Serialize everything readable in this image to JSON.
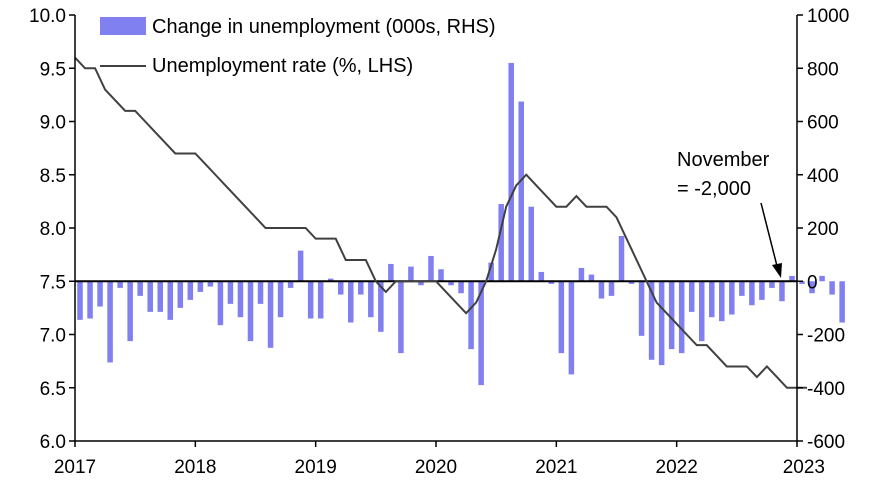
{
  "chart_data": {
    "type": "bar+line",
    "title": "",
    "x_ticks": [
      "2017",
      "2018",
      "2019",
      "2020",
      "2021",
      "2022",
      "2023"
    ],
    "x_range": [
      2017,
      2023
    ],
    "y_left": {
      "label": "",
      "ticks": [
        "6.0",
        "6.5",
        "7.0",
        "7.5",
        "8.0",
        "8.5",
        "9.0",
        "9.5",
        "10.0"
      ],
      "range": [
        6.0,
        10.0
      ]
    },
    "y_right": {
      "label": "",
      "ticks": [
        "-600",
        "-400",
        "-200",
        "0",
        "200",
        "400",
        "600",
        "800",
        "1000"
      ],
      "range": [
        -600,
        1000
      ]
    },
    "legend": {
      "placement": "top-left",
      "entries": [
        {
          "name": "Change in unemployment (000s, RHS)",
          "kind": "bar"
        },
        {
          "name": "Unemployment rate (%, LHS)",
          "kind": "line"
        }
      ]
    },
    "annotation": {
      "lines": [
        "November",
        "= -2,000"
      ]
    },
    "bar_series": {
      "name": "Change in unemployment (000s, RHS)",
      "color": "#8080F0",
      "start_year": 2017,
      "values": [
        -145,
        -140,
        -95,
        -305,
        -25,
        -225,
        -55,
        -115,
        -115,
        -145,
        -100,
        -70,
        -40,
        -20,
        -165,
        -85,
        -135,
        -225,
        -85,
        -250,
        -135,
        -25,
        115,
        -140,
        -140,
        10,
        -50,
        -155,
        -50,
        -135,
        -190,
        65,
        -270,
        55,
        -15,
        95,
        45,
        -15,
        -45,
        -255,
        -390,
        70,
        290,
        820,
        675,
        280,
        35,
        -10,
        -270,
        -350,
        50,
        25,
        -65,
        -55,
        170,
        -10,
        -205,
        -295,
        -315,
        -255,
        -270,
        -115,
        -225,
        -135,
        -150,
        -125,
        -55,
        -90,
        -70,
        -25,
        -75,
        20,
        -10,
        -45,
        20,
        -50,
        -155,
        0
      ]
    },
    "line_series": {
      "name": "Unemployment rate (%, LHS)",
      "color": "#404040",
      "start_year": 2017,
      "values": [
        9.6,
        9.5,
        9.5,
        9.3,
        9.2,
        9.1,
        9.1,
        9.0,
        8.9,
        8.8,
        8.7,
        8.7,
        8.7,
        8.6,
        8.5,
        8.4,
        8.3,
        8.2,
        8.1,
        8.0,
        8.0,
        8.0,
        8.0,
        8.0,
        7.9,
        7.9,
        7.9,
        7.7,
        7.7,
        7.7,
        7.5,
        7.4,
        7.5,
        7.5,
        7.5,
        7.5,
        7.5,
        7.4,
        7.3,
        7.2,
        7.3,
        7.5,
        7.8,
        8.2,
        8.4,
        8.5,
        8.4,
        8.3,
        8.2,
        8.2,
        8.3,
        8.2,
        8.2,
        8.2,
        8.1,
        7.9,
        7.7,
        7.5,
        7.3,
        7.2,
        7.1,
        7.0,
        6.9,
        6.9,
        6.8,
        6.7,
        6.7,
        6.7,
        6.6,
        6.7,
        6.6,
        6.5,
        6.5,
        6.5
      ]
    }
  }
}
